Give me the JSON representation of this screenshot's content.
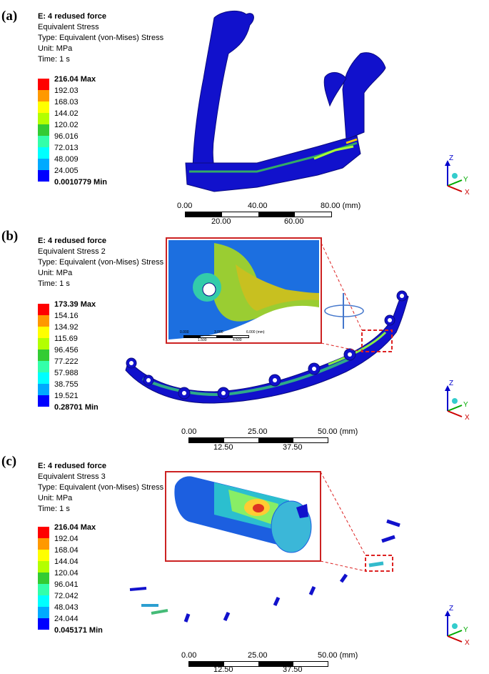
{
  "panels": [
    {
      "label": "(a)",
      "title": "E: 4 redused force",
      "subtitle": "Equivalent Stress",
      "type": "Type: Equivalent (von-Mises) Stress",
      "unit": "Unit: MPa",
      "time": "Time: 1 s",
      "legend": [
        "216.04 Max",
        "192.03",
        "168.03",
        "144.02",
        "120.02",
        "96.016",
        "72.013",
        "48.009",
        "24.005",
        "0.0010779 Min"
      ],
      "scale_top": [
        "0.00",
        "40.00",
        "80.00 (mm)"
      ],
      "scale_bottom": [
        "20.00",
        "60.00"
      ]
    },
    {
      "label": "(b)",
      "title": "E: 4 redused force",
      "subtitle": "Equivalent Stress 2",
      "type": "Type: Equivalent (von-Mises) Stress",
      "unit": "Unit: MPa",
      "time": "Time: 1 s",
      "legend": [
        "173.39 Max",
        "154.16",
        "134.92",
        "115.69",
        "96.456",
        "77.222",
        "57.988",
        "38.755",
        "19.521",
        "0.28701 Min"
      ],
      "scale_top": [
        "0.00",
        "25.00",
        "50.00 (mm)"
      ],
      "scale_bottom": [
        "12.50",
        "37.50"
      ],
      "inset_scale_top": [
        "0.000",
        "3.000",
        "6.000 (mm)"
      ],
      "inset_scale_bottom": [
        "1.500",
        "4.500"
      ]
    },
    {
      "label": "(c)",
      "title": "E: 4 redused force",
      "subtitle": "Equivalent Stress 3",
      "type": "Type: Equivalent (von-Mises) Stress",
      "unit": "Unit: MPa",
      "time": "Time: 1 s",
      "legend": [
        "216.04 Max",
        "192.04",
        "168.04",
        "144.04",
        "120.04",
        "96.041",
        "72.042",
        "48.043",
        "24.044",
        "0.045171 Min"
      ],
      "scale_top": [
        "0.00",
        "25.00",
        "50.00 (mm)"
      ],
      "scale_bottom": [
        "12.50",
        "37.50"
      ]
    }
  ],
  "axes": {
    "z": "Z",
    "y": "Y",
    "x": "X"
  },
  "colors": {
    "legend": [
      "#ff0000",
      "#ff9900",
      "#ffff00",
      "#b3ff00",
      "#33cc33",
      "#33ffaa",
      "#00ffff",
      "#00aaff",
      "#0000ff"
    ],
    "bone": "#1111cc"
  }
}
